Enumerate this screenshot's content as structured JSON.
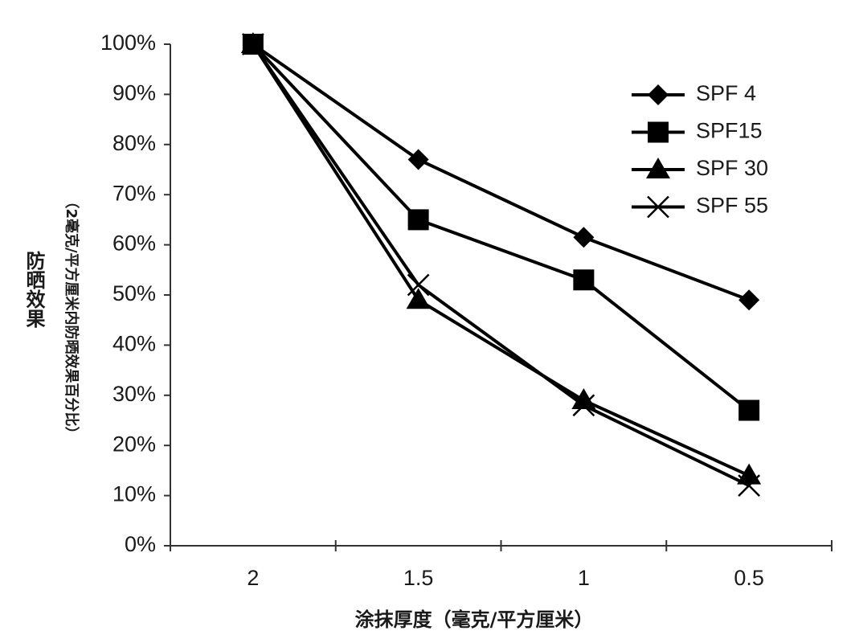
{
  "chart_data": {
    "type": "line",
    "y_label": "防晒效果",
    "y_sublabel": "（2毫克/平方厘米内防晒效果百分比）",
    "x_label": "涂抹厚度（毫克/平方厘米）",
    "categories": [
      "2",
      "1.5",
      "1",
      "0.5"
    ],
    "series": [
      {
        "name": "SPF 4",
        "color": "#000000",
        "marker": "diamond",
        "values": [
          100,
          77,
          61.5,
          49
        ]
      },
      {
        "name": "SPF15",
        "color": "#000000",
        "marker": "square",
        "values": [
          100,
          65,
          53,
          27
        ]
      },
      {
        "name": "SPF 30",
        "color": "#000000",
        "marker": "triangle",
        "values": [
          100,
          49,
          29,
          14
        ]
      },
      {
        "name": "SPF 55",
        "color": "#000000",
        "marker": "x",
        "values": [
          100,
          52,
          28,
          12
        ]
      }
    ],
    "ylim": [
      0,
      100
    ],
    "yticks": [
      {
        "value": 0,
        "label": "0%"
      },
      {
        "value": 10,
        "label": "10%"
      },
      {
        "value": 20,
        "label": "20%"
      },
      {
        "value": 30,
        "label": "30%"
      },
      {
        "value": 40,
        "label": "40%"
      },
      {
        "value": 50,
        "label": "50%"
      },
      {
        "value": 60,
        "label": "60%"
      },
      {
        "value": 70,
        "label": "70%"
      },
      {
        "value": 80,
        "label": "80%"
      },
      {
        "value": 90,
        "label": "90%"
      },
      {
        "value": 100,
        "label": "100%"
      }
    ],
    "grid": false,
    "legend": "top-right"
  }
}
